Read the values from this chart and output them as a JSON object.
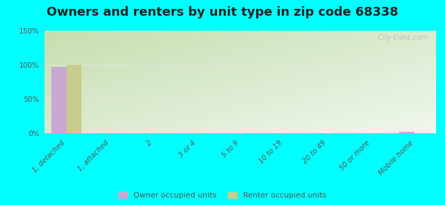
{
  "title": "Owners and renters by unit type in zip code 68338",
  "categories": [
    "1, detached",
    "1, attached",
    "2",
    "3 or 4",
    "5 to 9",
    "10 to 19",
    "20 to 49",
    "50 or more",
    "Mobile home"
  ],
  "owner_values": [
    97,
    0,
    0,
    0,
    0,
    0,
    0,
    0,
    2
  ],
  "renter_values": [
    100,
    0,
    0,
    0,
    0,
    0,
    0,
    0,
    0
  ],
  "owner_color": "#c9a8d4",
  "renter_color": "#c8cc8c",
  "ylim": [
    0,
    150
  ],
  "yticks": [
    0,
    50,
    100,
    150
  ],
  "ytick_labels": [
    "0%",
    "50%",
    "100%",
    "150%"
  ],
  "bar_width": 0.35,
  "outer_background": "#00ffff",
  "watermark": "City-Data.com",
  "legend_owner": "Owner occupied units",
  "legend_renter": "Renter occupied units",
  "title_fontsize": 13,
  "tick_fontsize": 7.5
}
